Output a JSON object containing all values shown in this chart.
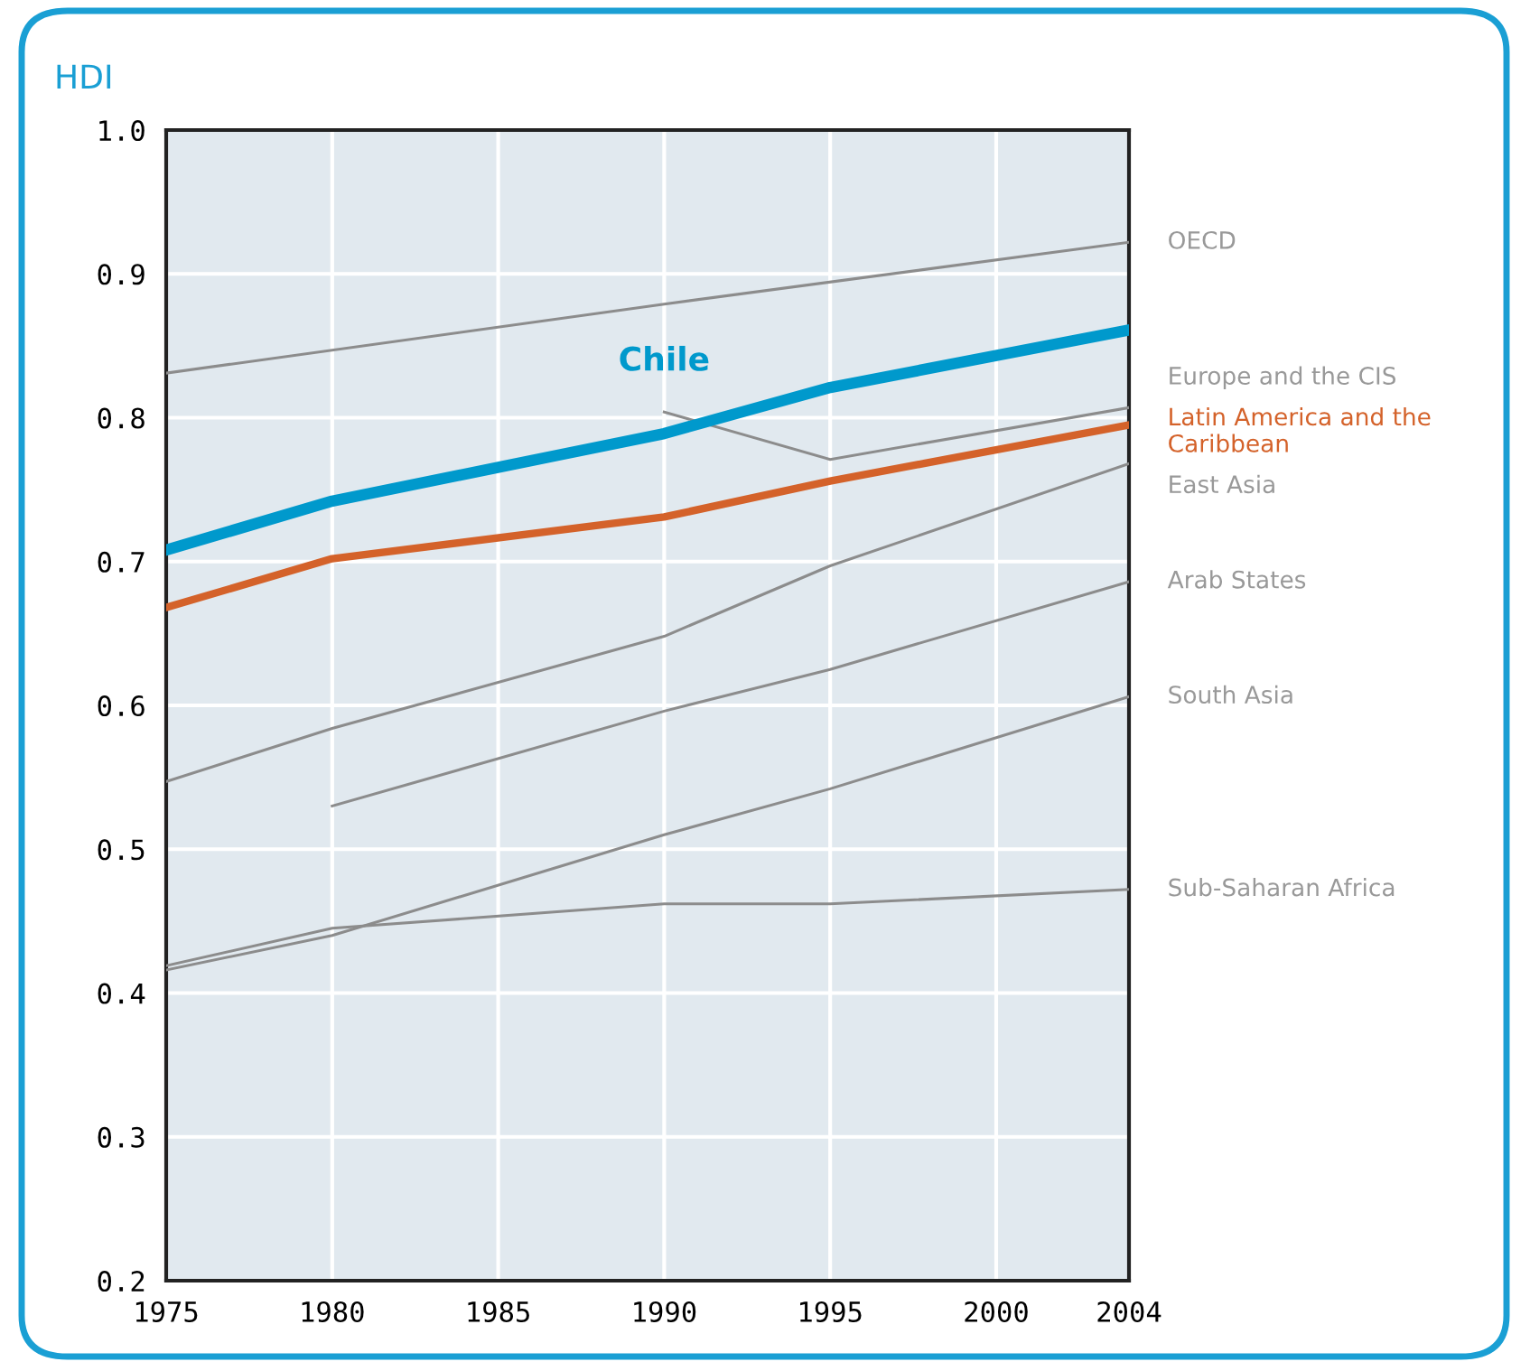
{
  "chart_data": {
    "type": "line",
    "ylabel": "HDI",
    "xlim": [
      1975,
      2004
    ],
    "xticks": [
      1975,
      1980,
      1985,
      1990,
      1995,
      2000,
      2004
    ],
    "ylim": [
      0.2,
      1.0
    ],
    "yticks": [
      0.2,
      0.3,
      0.4,
      0.5,
      0.6,
      0.7,
      0.8,
      0.9,
      {
        "value": 1.0,
        "label": "1.0"
      }
    ],
    "grid": true,
    "legend": false,
    "marker": "none",
    "line_style": "solid",
    "series": [
      {
        "name": "OECD",
        "color": "#8c8c8c",
        "x": [
          1975,
          1990,
          2004
        ],
        "values": [
          0.831,
          0.879,
          0.922
        ]
      },
      {
        "name": "Europe and the CIS",
        "color": "#8c8c8c",
        "x": [
          1990,
          1995,
          2004
        ],
        "values": [
          0.804,
          0.771,
          0.807
        ]
      },
      {
        "name": "Latin America and the Caribbean",
        "color": "#d4622a",
        "x": [
          1975,
          1980,
          1990,
          1995,
          2004
        ],
        "values": [
          0.668,
          0.702,
          0.731,
          0.756,
          0.795
        ]
      },
      {
        "name": "East Asia",
        "color": "#8c8c8c",
        "x": [
          1975,
          1980,
          1990,
          1995,
          2004
        ],
        "values": [
          0.547,
          0.584,
          0.648,
          0.697,
          0.768
        ]
      },
      {
        "name": "Arab States",
        "color": "#8c8c8c",
        "x": [
          1980,
          1990,
          1995,
          2004
        ],
        "values": [
          0.53,
          0.596,
          0.625,
          0.686
        ]
      },
      {
        "name": "South Asia",
        "color": "#8c8c8c",
        "x": [
          1975,
          1980,
          1990,
          1995,
          2004
        ],
        "values": [
          0.416,
          0.44,
          0.51,
          0.542,
          0.606
        ]
      },
      {
        "name": "Sub-Saharan Africa",
        "color": "#8c8c8c",
        "x": [
          1975,
          1980,
          1990,
          1995,
          2004
        ],
        "values": [
          0.419,
          0.445,
          0.462,
          0.462,
          0.472
        ]
      },
      {
        "name": "Chile",
        "color": "#0099cc",
        "x": [
          1975,
          1980,
          1990,
          1995,
          2004
        ],
        "values": [
          0.708,
          0.742,
          0.789,
          0.821,
          0.861
        ]
      }
    ]
  }
}
